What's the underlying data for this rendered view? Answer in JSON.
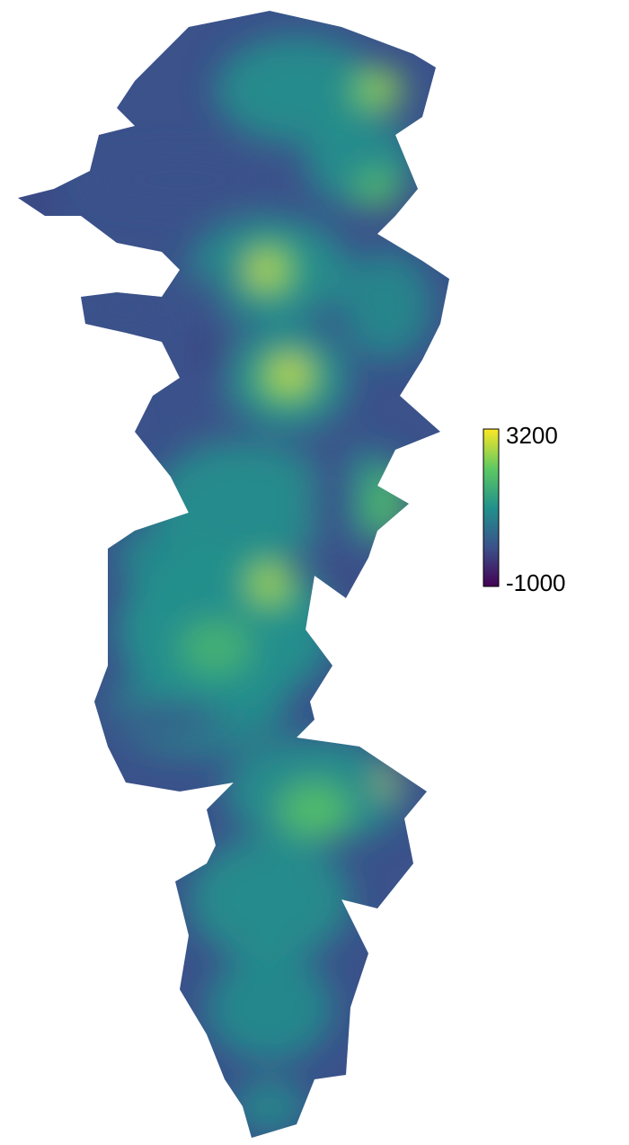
{
  "colorbar": {
    "max_label": "3200",
    "min_label": "-1000",
    "colors": [
      "#440154",
      "#3b528b",
      "#21918c",
      "#5ec962",
      "#fde725"
    ]
  }
}
